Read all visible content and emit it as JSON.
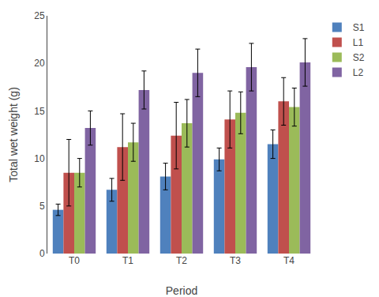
{
  "chart_data": {
    "type": "bar",
    "xlabel": "Period",
    "ylabel": "Total wet weight (g)",
    "categories": [
      "T0",
      "T1",
      "T2",
      "T3",
      "T4"
    ],
    "series": [
      {
        "name": "S1",
        "color": "#4F81BD",
        "values": [
          4.6,
          6.7,
          8.1,
          9.9,
          11.5
        ],
        "errors": [
          0.6,
          1.2,
          1.4,
          1.2,
          1.5
        ]
      },
      {
        "name": "L1",
        "color": "#C0504D",
        "values": [
          8.5,
          11.2,
          12.4,
          14.1,
          16.0
        ],
        "errors": [
          3.5,
          3.5,
          3.5,
          3.0,
          2.5
        ]
      },
      {
        "name": "S2",
        "color": "#9BBB59",
        "values": [
          8.5,
          11.7,
          13.7,
          14.8,
          15.4
        ],
        "errors": [
          1.5,
          2.0,
          2.5,
          2.2,
          2.0
        ]
      },
      {
        "name": "L2",
        "color": "#8064A2",
        "values": [
          13.2,
          17.2,
          19.0,
          19.6,
          20.1
        ],
        "errors": [
          1.8,
          2.0,
          2.5,
          2.5,
          2.5
        ]
      }
    ],
    "ylim": [
      0,
      25
    ],
    "yticks": [
      0,
      5,
      10,
      15,
      20,
      25
    ],
    "grid": false,
    "legend": "right"
  }
}
